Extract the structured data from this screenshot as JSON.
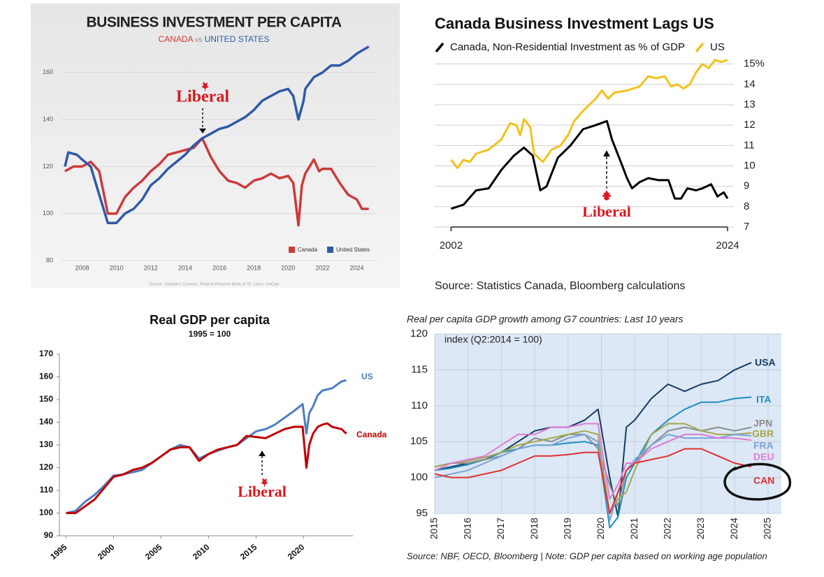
{
  "chart_data": [
    {
      "type": "line",
      "title": "BUSINESS INVESTMENT PER CAPITA",
      "subtitle": [
        "CANADA",
        "vs",
        "UNITED STATES"
      ],
      "annotations": [
        "Liberal"
      ],
      "source": "Source: Statistics Canada, Federal Reserve Bank of St. Louis, IceCap",
      "xlim": [
        2006.8,
        2025.2
      ],
      "ylim": [
        80,
        173
      ],
      "xticks": [
        2008,
        2010,
        2012,
        2014,
        2016,
        2018,
        2020,
        2022,
        2024
      ],
      "yticks": [
        80,
        100,
        120,
        140,
        160
      ],
      "grid": true,
      "legend": "lower right",
      "series": [
        {
          "name": "Canada",
          "color": "#cc3b3b",
          "x": [
            2007,
            2007.5,
            2008,
            2008.5,
            2009,
            2009.5,
            2010,
            2010.5,
            2011,
            2011.5,
            2012,
            2012.5,
            2013,
            2013.5,
            2014,
            2014.5,
            2015,
            2015.5,
            2016,
            2016.5,
            2017,
            2017.5,
            2018,
            2018.5,
            2019,
            2019.5,
            2020,
            2020.3,
            2020.6,
            2020.8,
            2021,
            2021.5,
            2021.8,
            2022,
            2022.5,
            2023,
            2023.5,
            2024,
            2024.3,
            2024.7
          ],
          "values": [
            118,
            120,
            120,
            122,
            118,
            100,
            100,
            107,
            111,
            114,
            118,
            121,
            125,
            126,
            127,
            128,
            132,
            124,
            118,
            114,
            113,
            111,
            114,
            115,
            117,
            115,
            116,
            113,
            95,
            112,
            117,
            123,
            118,
            119,
            119,
            113,
            108,
            106,
            102,
            102
          ]
        },
        {
          "name": "United States",
          "color": "#2f5aa8",
          "x": [
            2007,
            2007.2,
            2007.7,
            2008,
            2008.5,
            2009,
            2009.5,
            2010,
            2010.5,
            2011,
            2011.5,
            2012,
            2012.5,
            2013,
            2013.5,
            2014,
            2014.5,
            2015,
            2015.5,
            2016,
            2016.5,
            2017,
            2017.5,
            2018,
            2018.5,
            2019,
            2019.5,
            2020,
            2020.3,
            2020.6,
            2020.9,
            2021,
            2021.5,
            2022,
            2022.5,
            2023,
            2023.5,
            2024,
            2024.7
          ],
          "values": [
            120,
            126,
            125,
            123,
            120,
            108,
            96,
            96,
            100,
            102,
            106,
            112,
            115,
            119,
            122,
            125,
            129,
            132,
            134,
            136,
            137,
            139,
            141,
            144,
            148,
            150,
            152,
            153,
            150,
            140,
            148,
            153,
            158,
            160,
            163,
            163,
            165,
            168,
            171
          ]
        }
      ]
    },
    {
      "type": "line",
      "title": "Canada Business Investment Lags US",
      "annotations": [
        "Liberal"
      ],
      "source": "Source: Statistics Canada, Bloomberg calculations",
      "xlim": [
        2000.7,
        2024.5
      ],
      "ylim": [
        7,
        15.4
      ],
      "xticks": [
        2002,
        2024
      ],
      "yticks": [
        7,
        8,
        9,
        10,
        11,
        12,
        13,
        14,
        {
          "value": 15,
          "label": "15%"
        }
      ],
      "grid": true,
      "legend": "upper left",
      "series": [
        {
          "name": "Canada, Non-Residential Investment as % of GDP",
          "color": "#000000",
          "x": [
            2002,
            2003,
            2004,
            2005,
            2006,
            2007,
            2007.8,
            2008.5,
            2009.1,
            2009.6,
            2010.5,
            2011.5,
            2012.5,
            2013.5,
            2014.4,
            2014.8,
            2015.5,
            2016,
            2016.4,
            2017,
            2017.7,
            2018.5,
            2019.3,
            2019.8,
            2020.3,
            2020.8,
            2021.5,
            2022,
            2022.7,
            2023.2,
            2023.7,
            2024
          ],
          "values": [
            7.9,
            8.1,
            8.8,
            8.9,
            9.8,
            10.5,
            10.9,
            10.5,
            8.8,
            9.0,
            10.4,
            11.0,
            11.8,
            12.0,
            12.2,
            11.3,
            10.2,
            9.4,
            8.9,
            9.2,
            9.4,
            9.3,
            9.3,
            8.4,
            8.4,
            8.9,
            8.8,
            8.9,
            9.1,
            8.5,
            8.7,
            8.4
          ]
        },
        {
          "name": "US",
          "color": "#f2c21b",
          "x": [
            2002,
            2002.5,
            2003,
            2003.5,
            2004,
            2005,
            2006,
            2006.7,
            2007.2,
            2007.5,
            2007.8,
            2008.3,
            2008.6,
            2009.3,
            2010,
            2010.7,
            2011.3,
            2011.8,
            2012.5,
            2013,
            2013.5,
            2014,
            2014.5,
            2015,
            2016,
            2017,
            2017.7,
            2018.3,
            2019,
            2019.5,
            2020,
            2020.5,
            2021,
            2021.5,
            2022,
            2022.5,
            2023,
            2023.5,
            2024
          ],
          "values": [
            10.3,
            9.9,
            10.3,
            10.2,
            10.6,
            10.8,
            11.3,
            12.1,
            12.0,
            11.5,
            12.3,
            11.9,
            10.6,
            10.2,
            10.8,
            11.0,
            11.5,
            12.2,
            12.7,
            13.0,
            13.3,
            13.7,
            13.3,
            13.6,
            13.7,
            13.9,
            14.4,
            14.3,
            14.4,
            13.9,
            14.0,
            13.8,
            14.0,
            14.6,
            15.0,
            14.8,
            15.2,
            15.1,
            15.2
          ]
        }
      ]
    },
    {
      "type": "line",
      "title": "Real GDP per capita",
      "subtitle": "1995 = 100",
      "annotations": [
        "Liberal"
      ],
      "xlim": [
        1994.3,
        2025.2
      ],
      "ylim": [
        90,
        170
      ],
      "xticks": [
        1995,
        2000,
        2005,
        2010,
        2015,
        2020
      ],
      "yticks": [
        90,
        100,
        110,
        120,
        130,
        140,
        150,
        160,
        170
      ],
      "series": [
        {
          "name": "US",
          "color": "#4f7fc0",
          "x": [
            1995,
            1996,
            1997,
            1998,
            1999,
            2000,
            2001,
            2002,
            2003,
            2004,
            2005,
            2006,
            2007,
            2008,
            2009,
            2010,
            2011,
            2012,
            2013,
            2014,
            2015,
            2016,
            2017,
            2018,
            2019,
            2019.9,
            2020.3,
            2020.6,
            2021,
            2021.5,
            2022,
            2023,
            2024,
            2024.5
          ],
          "values": [
            100,
            101,
            105,
            108,
            112,
            116.5,
            117,
            118,
            119,
            122,
            125,
            128,
            130,
            129,
            124,
            126,
            127.5,
            129,
            130,
            133,
            136,
            137,
            139,
            142,
            145,
            148,
            135,
            144,
            147,
            152,
            154,
            155,
            158,
            158.5
          ]
        },
        {
          "name": "Canada",
          "color": "#c00000",
          "x": [
            1995,
            1996,
            1997,
            1998,
            1999,
            2000,
            2001,
            2002,
            2003,
            2004,
            2005,
            2006,
            2007,
            2008,
            2009,
            2010,
            2011,
            2012,
            2013,
            2014,
            2015,
            2016,
            2017,
            2018,
            2019,
            2019.9,
            2020.3,
            2020.6,
            2021,
            2021.5,
            2022,
            2022.5,
            2023,
            2024,
            2024.5
          ],
          "values": [
            100,
            100,
            103,
            106,
            111,
            116,
            117,
            119,
            120,
            122,
            125,
            128,
            129,
            129,
            123,
            126,
            128,
            129,
            130,
            134,
            133.5,
            133,
            135,
            137,
            138,
            138,
            120,
            130,
            135,
            138,
            139,
            139.5,
            138,
            137,
            135
          ]
        }
      ]
    },
    {
      "type": "line",
      "title": "Real per capita GDP growth among G7 countries: Last 10 years",
      "annotations": [
        "index (Q2:2014 = 100)"
      ],
      "source": "Source: NBF, OECD, Bloomberg | Note: GDP per capita based on working age population",
      "xlim": [
        2015,
        2025.4
      ],
      "ylim": [
        95,
        120
      ],
      "xticks": [
        2015,
        2016,
        2017,
        2018,
        2019,
        2020,
        2021,
        2022,
        2023,
        2024,
        2025
      ],
      "yticks": [
        95,
        100,
        105,
        110,
        115,
        120
      ],
      "grid": true,
      "x": [
        2015,
        2015.5,
        2016,
        2016.5,
        2017,
        2017.5,
        2018,
        2018.5,
        2019,
        2019.5,
        2019.9,
        2020.25,
        2020.5,
        2020.75,
        2021,
        2021.5,
        2022,
        2022.5,
        2023,
        2023.5,
        2024,
        2024.5
      ],
      "series": [
        {
          "name": "USA",
          "color": "#163a5f",
          "values": [
            101,
            101.5,
            102,
            102.5,
            103.5,
            105,
            106.5,
            107,
            107,
            108,
            109.5,
            100,
            94.5,
            107,
            108,
            111,
            113,
            112,
            113,
            113.5,
            115,
            116
          ]
        },
        {
          "name": "ITA",
          "color": "#1f8fc0",
          "values": [
            101,
            101.3,
            101.8,
            102.5,
            103.5,
            104,
            104.5,
            104.5,
            104.8,
            105,
            104.5,
            93,
            94.5,
            100,
            102,
            106,
            108,
            109.5,
            110.5,
            110.5,
            111,
            111.2
          ]
        },
        {
          "name": "JPN",
          "color": "#8c8c8c",
          "values": [
            101.5,
            102,
            102,
            102.5,
            103,
            104,
            105.5,
            105,
            106,
            106,
            104,
            99,
            96,
            101,
            102,
            104.5,
            106.5,
            107,
            106.5,
            107,
            106.5,
            107
          ]
        },
        {
          "name": "GBR",
          "color": "#a6a64a",
          "values": [
            101.5,
            102,
            102.3,
            102.8,
            103.5,
            104.5,
            105,
            105.5,
            106,
            106.5,
            106,
            95,
            97,
            98,
            101,
            106,
            107.5,
            107.5,
            106.5,
            106,
            106,
            106.2
          ]
        },
        {
          "name": "FRA",
          "color": "#7ba3d6",
          "values": [
            100,
            100.5,
            101,
            102,
            103,
            104,
            104.5,
            104.5,
            105.5,
            106,
            105,
            94,
            98,
            101,
            102.5,
            104.5,
            106,
            105.5,
            105.5,
            105.5,
            106,
            105.8
          ]
        },
        {
          "name": "DEU",
          "color": "#e07ad6",
          "values": [
            101,
            102,
            102.5,
            103,
            104.5,
            106,
            106,
            107,
            107,
            107.5,
            107.5,
            97,
            99,
            102,
            102,
            104,
            105,
            106,
            106,
            105.5,
            105.5,
            105.2
          ]
        },
        {
          "name": "CAN",
          "color": "#e03030",
          "values": [
            100.5,
            100,
            100,
            100.5,
            101,
            102,
            103,
            103,
            103.2,
            103.5,
            103.5,
            95,
            98,
            101,
            102,
            102.5,
            103,
            104,
            104,
            103,
            102,
            101.5
          ]
        }
      ]
    }
  ]
}
